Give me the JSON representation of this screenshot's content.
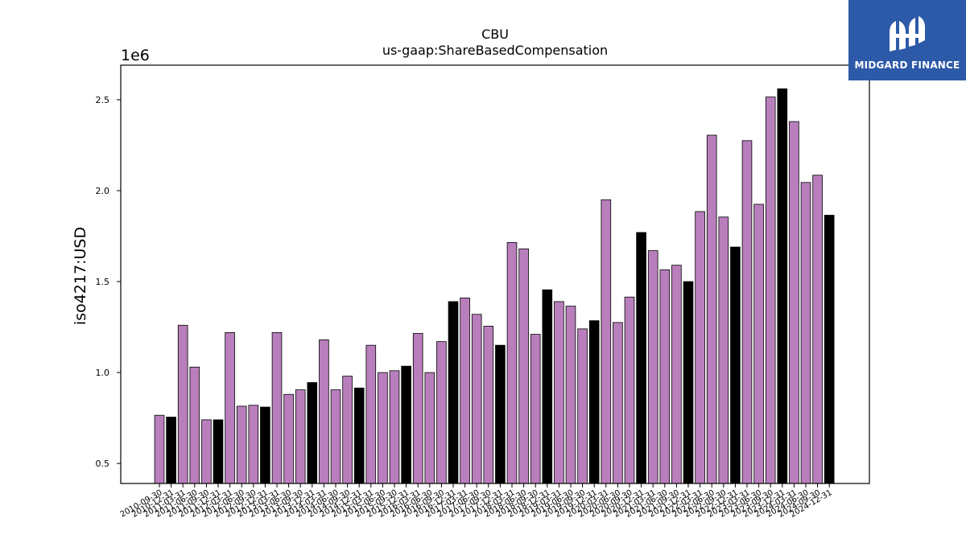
{
  "brand": {
    "name": "MIDGARD FINANCE",
    "icon": "midgard-logo-icon",
    "background": "#2d5aa8"
  },
  "chart_data": {
    "type": "bar",
    "title": "CBU",
    "subtitle": "us-gaap:ShareBasedCompensation",
    "ylabel": "iso4217:USD",
    "xlabel": "",
    "y_multiplier": "1e6",
    "ylim": [
      0.39,
      2.69
    ],
    "yticks": [
      0.5,
      1.0,
      1.5,
      2.0,
      2.5
    ],
    "ytick_labels": [
      "0.5",
      "1.0",
      "1.5",
      "2.0",
      "2.5"
    ],
    "grid": false,
    "legend": "none",
    "colors": {
      "quarter": "#b87fbc",
      "year_end": "#000000",
      "edge": "#000000"
    },
    "categories": [
      "2010-09-30",
      "2010-12-31",
      "2011-03-31",
      "2011-06-30",
      "2011-09-30",
      "2011-12-31",
      "2012-03-31",
      "2012-06-30",
      "2012-09-30",
      "2012-12-31",
      "2013-03-31",
      "2013-06-30",
      "2013-09-30",
      "2013-12-31",
      "2014-03-31",
      "2014-06-30",
      "2014-09-30",
      "2014-12-31",
      "2015-03-31",
      "2015-06-30",
      "2015-09-30",
      "2015-12-31",
      "2016-03-31",
      "2016-06-30",
      "2016-09-30",
      "2016-12-31",
      "2017-03-31",
      "2017-06-30",
      "2017-09-30",
      "2017-12-31",
      "2018-03-31",
      "2018-06-30",
      "2018-09-30",
      "2018-12-31",
      "2019-03-31",
      "2019-06-30",
      "2019-09-30",
      "2019-12-31",
      "2020-03-31",
      "2020-06-30",
      "2020-09-30",
      "2020-12-31",
      "2021-03-31",
      "2021-06-30",
      "2021-09-30",
      "2021-12-31",
      "2022-03-31",
      "2022-06-30",
      "2022-09-30",
      "2022-12-31",
      "2023-03-31",
      "2023-06-30",
      "2023-09-30",
      "2023-12-31",
      "2024-03-31",
      "2024-06-30",
      "2024-09-30",
      "2024-12-31"
    ],
    "values": [
      0.765,
      0.755,
      1.26,
      1.03,
      0.74,
      0.74,
      1.22,
      0.815,
      0.82,
      0.81,
      1.22,
      0.88,
      0.905,
      0.945,
      1.18,
      0.905,
      0.98,
      0.915,
      1.15,
      1.0,
      1.01,
      1.035,
      1.215,
      1.0,
      1.17,
      1.39,
      1.41,
      1.32,
      1.255,
      1.15,
      1.715,
      1.68,
      1.21,
      1.455,
      1.39,
      1.365,
      1.24,
      1.285,
      1.95,
      1.275,
      1.415,
      1.77,
      1.67,
      1.565,
      1.59,
      1.5,
      1.885,
      2.305,
      1.855,
      1.69,
      2.275,
      1.925,
      2.515,
      2.56,
      2.38,
      2.045,
      2.085,
      1.865
    ],
    "year_end_flags": [
      false,
      true,
      false,
      false,
      false,
      true,
      false,
      false,
      false,
      true,
      false,
      false,
      false,
      true,
      false,
      false,
      false,
      true,
      false,
      false,
      false,
      true,
      false,
      false,
      false,
      true,
      false,
      false,
      false,
      true,
      false,
      false,
      false,
      true,
      false,
      false,
      false,
      true,
      false,
      false,
      false,
      true,
      false,
      false,
      false,
      true,
      false,
      false,
      false,
      true,
      false,
      false,
      false,
      true,
      false,
      false,
      false,
      true
    ]
  }
}
